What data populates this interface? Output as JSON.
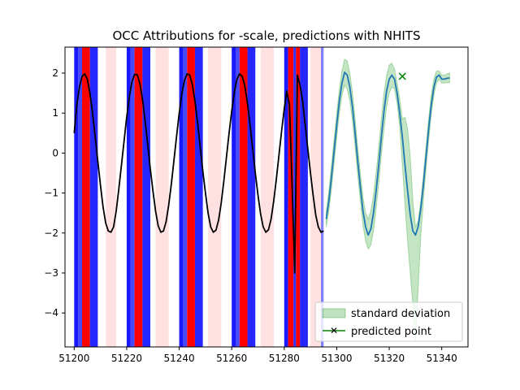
{
  "chart_data": {
    "type": "line",
    "title": "OCC Attributions for -scale, predictions with NHITS",
    "xlabel": "",
    "ylabel": "",
    "xlim": [
      51196.5,
      51350
    ],
    "ylim": [
      -4.85,
      2.65
    ],
    "grid": false,
    "x_ticks": [
      51200,
      51220,
      51240,
      51260,
      51280,
      51300,
      51320,
      51340
    ],
    "y_ticks": [
      2,
      1,
      0,
      -1,
      -2,
      -3,
      -4
    ],
    "history": {
      "color": "#000000",
      "x": [
        51200,
        51201,
        51202,
        51203,
        51204,
        51205,
        51206,
        51207,
        51208,
        51209,
        51210,
        51211,
        51212,
        51213,
        51214,
        51215,
        51216,
        51217,
        51218,
        51219,
        51220,
        51221,
        51222,
        51223,
        51224,
        51225,
        51226,
        51227,
        51228,
        51229,
        51230,
        51231,
        51232,
        51233,
        51234,
        51235,
        51236,
        51237,
        51238,
        51239,
        51240,
        51241,
        51242,
        51243,
        51244,
        51245,
        51246,
        51247,
        51248,
        51249,
        51250,
        51251,
        51252,
        51253,
        51254,
        51255,
        51256,
        51257,
        51258,
        51259,
        51260,
        51261,
        51262,
        51263,
        51264,
        51265,
        51266,
        51267,
        51268,
        51269,
        51270,
        51271,
        51272,
        51273,
        51274,
        51275,
        51276,
        51277,
        51278,
        51279,
        51280,
        51281,
        51282,
        51283,
        51284,
        51285,
        51286,
        51287,
        51288,
        51289,
        51290,
        51291,
        51292,
        51293,
        51294,
        51295
      ],
      "y": [
        0.5,
        1.2,
        1.65,
        1.92,
        1.98,
        1.85,
        1.5,
        1.0,
        0.4,
        -0.2,
        -0.8,
        -1.35,
        -1.75,
        -1.95,
        -1.98,
        -1.85,
        -1.45,
        -0.9,
        -0.3,
        0.3,
        0.9,
        1.4,
        1.78,
        1.97,
        1.96,
        1.75,
        1.35,
        0.82,
        0.22,
        -0.4,
        -0.95,
        -1.45,
        -1.82,
        -1.98,
        -1.95,
        -1.72,
        -1.3,
        -0.78,
        -0.18,
        0.42,
        1.0,
        1.48,
        1.82,
        1.98,
        1.95,
        1.72,
        1.3,
        0.76,
        0.15,
        -0.45,
        -1.0,
        -1.5,
        -1.85,
        -1.98,
        -1.93,
        -1.68,
        -1.25,
        -0.7,
        -0.1,
        0.5,
        1.05,
        1.52,
        1.85,
        1.98,
        1.92,
        1.68,
        1.25,
        0.7,
        0.1,
        -0.5,
        -1.05,
        -1.52,
        -1.85,
        -1.98,
        -1.92,
        -1.65,
        -1.2,
        -0.65,
        -0.05,
        0.55,
        1.1,
        1.55,
        1.2,
        -0.8,
        -3.0,
        1.95,
        1.7,
        1.3,
        0.7,
        0.1,
        -0.5,
        -1.05,
        -1.55,
        -1.85,
        -1.98,
        -1.95
      ]
    },
    "forecast": {
      "color": "#1f77b4",
      "x": [
        51296,
        51297,
        51298,
        51299,
        51300,
        51301,
        51302,
        51303,
        51304,
        51305,
        51306,
        51307,
        51308,
        51309,
        51310,
        51311,
        51312,
        51313,
        51314,
        51315,
        51316,
        51317,
        51318,
        51319,
        51320,
        51321,
        51322,
        51323,
        51324,
        51325,
        51326,
        51327,
        51328,
        51329,
        51330,
        51331,
        51332,
        51333,
        51334,
        51335,
        51336,
        51337,
        51338,
        51339,
        51340,
        51341,
        51342,
        51343
      ],
      "y": [
        -1.65,
        -1.2,
        -0.6,
        0.05,
        0.7,
        1.3,
        1.75,
        2.02,
        1.95,
        1.65,
        1.15,
        0.5,
        -0.2,
        -0.85,
        -1.45,
        -1.85,
        -2.05,
        -1.9,
        -1.5,
        -0.95,
        -0.3,
        0.4,
        1.05,
        1.55,
        1.85,
        1.95,
        1.85,
        1.5,
        1.0,
        0.4,
        -0.3,
        -0.95,
        -1.55,
        -1.95,
        -2.05,
        -1.85,
        -1.4,
        -0.8,
        -0.1,
        0.6,
        1.2,
        1.65,
        1.9,
        1.95,
        1.85,
        1.85,
        1.87,
        1.88
      ],
      "upper": [
        -1.45,
        -0.95,
        -0.3,
        0.35,
        1.0,
        1.6,
        2.05,
        2.35,
        2.3,
        2.0,
        1.5,
        0.85,
        0.15,
        -0.5,
        -1.1,
        -1.5,
        -1.65,
        -1.45,
        -1.05,
        -0.5,
        0.15,
        0.85,
        1.5,
        1.95,
        2.2,
        2.25,
        2.1,
        1.75,
        1.35,
        0.85,
        0.9,
        0.6,
        -0.1,
        -1.2,
        -1.85,
        -1.7,
        -1.2,
        -0.55,
        0.15,
        0.85,
        1.45,
        1.85,
        2.05,
        2.05,
        1.95,
        1.95,
        1.98,
        2.0
      ],
      "lower": [
        -1.85,
        -1.45,
        -0.9,
        -0.25,
        0.4,
        1.0,
        1.45,
        1.7,
        1.6,
        1.3,
        0.8,
        0.15,
        -0.55,
        -1.2,
        -1.8,
        -2.2,
        -2.4,
        -2.3,
        -1.95,
        -1.4,
        -0.75,
        -0.05,
        0.6,
        1.15,
        1.5,
        1.65,
        1.6,
        1.25,
        0.65,
        -0.3,
        -1.3,
        -2.2,
        -3.0,
        -3.8,
        -4.7,
        -3.4,
        -2.1,
        -1.2,
        -0.4,
        0.3,
        0.95,
        1.45,
        1.75,
        1.85,
        1.75,
        1.75,
        1.76,
        1.76
      ]
    },
    "predicted_point": {
      "x": 51325,
      "y": 1.92,
      "color": "#008000"
    },
    "attribution_spans": [
      {
        "x0": 51200,
        "x1": 51201.5,
        "color": "#0000ff",
        "alpha": 0.9
      },
      {
        "x0": 51201.5,
        "x1": 51203,
        "color": "#1a1aff",
        "alpha": 0.8
      },
      {
        "x0": 51203,
        "x1": 51206,
        "color": "#ff0000",
        "alpha": 1.0
      },
      {
        "x0": 51206,
        "x1": 51209,
        "color": "#0000ff",
        "alpha": 0.85
      },
      {
        "x0": 51212,
        "x1": 51216,
        "color": "#ffb3b3",
        "alpha": 0.4
      },
      {
        "x0": 51220,
        "x1": 51221.5,
        "color": "#0000ff",
        "alpha": 0.9
      },
      {
        "x0": 51221.5,
        "x1": 51223,
        "color": "#1a1aff",
        "alpha": 0.8
      },
      {
        "x0": 51223,
        "x1": 51226,
        "color": "#ff0000",
        "alpha": 1.0
      },
      {
        "x0": 51226,
        "x1": 51229,
        "color": "#0000ff",
        "alpha": 0.85
      },
      {
        "x0": 51231,
        "x1": 51236,
        "color": "#ffb3b3",
        "alpha": 0.4
      },
      {
        "x0": 51240,
        "x1": 51241.5,
        "color": "#0000ff",
        "alpha": 0.9
      },
      {
        "x0": 51241.5,
        "x1": 51243,
        "color": "#1a1aff",
        "alpha": 0.8
      },
      {
        "x0": 51243,
        "x1": 51246,
        "color": "#ff0000",
        "alpha": 1.0
      },
      {
        "x0": 51246,
        "x1": 51249,
        "color": "#0000ff",
        "alpha": 0.85
      },
      {
        "x0": 51251,
        "x1": 51256,
        "color": "#ffb3b3",
        "alpha": 0.4
      },
      {
        "x0": 51260,
        "x1": 51261.5,
        "color": "#0000ff",
        "alpha": 0.9
      },
      {
        "x0": 51261.5,
        "x1": 51263,
        "color": "#1a1aff",
        "alpha": 0.8
      },
      {
        "x0": 51263,
        "x1": 51266,
        "color": "#ff0000",
        "alpha": 1.0
      },
      {
        "x0": 51266,
        "x1": 51269,
        "color": "#0000ff",
        "alpha": 0.85
      },
      {
        "x0": 51271,
        "x1": 51276,
        "color": "#ffb3b3",
        "alpha": 0.4
      },
      {
        "x0": 51280,
        "x1": 51281.5,
        "color": "#0000ff",
        "alpha": 0.9
      },
      {
        "x0": 51281.5,
        "x1": 51283.5,
        "color": "#ff0000",
        "alpha": 1.0
      },
      {
        "x0": 51283.5,
        "x1": 51284.5,
        "color": "#0000ff",
        "alpha": 0.8
      },
      {
        "x0": 51284.5,
        "x1": 51286,
        "color": "#ff0000",
        "alpha": 1.0
      },
      {
        "x0": 51286,
        "x1": 51289,
        "color": "#0000ff",
        "alpha": 0.85
      },
      {
        "x0": 51290,
        "x1": 51294,
        "color": "#ffb3b3",
        "alpha": 0.4
      },
      {
        "x0": 51294,
        "x1": 51295,
        "color": "#0000ff",
        "alpha": 0.5
      }
    ],
    "legend": {
      "placement": "lower-right",
      "entries": [
        {
          "label": "standard deviation",
          "kind": "patch",
          "color": "#2ca02c"
        },
        {
          "label": "predicted point",
          "kind": "marker",
          "color": "#008000"
        }
      ]
    }
  }
}
